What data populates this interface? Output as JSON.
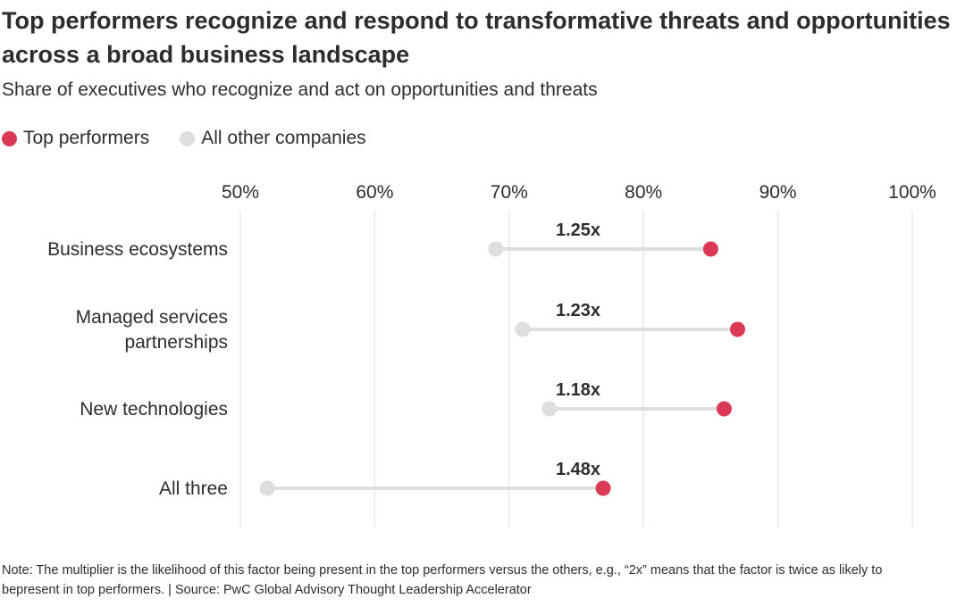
{
  "title": "Top performers recognize and respond to transformative threats and opportunities across a broad business landscape",
  "subtitle": "Share of executives who recognize and act on opportunities and threats",
  "legend": [
    {
      "label": "Top performers",
      "color": "#d93954"
    },
    {
      "label": "All other companies",
      "color": "#dedede"
    }
  ],
  "chart_data": {
    "type": "dumbbell",
    "x_ticks": [
      "50%",
      "60%",
      "70%",
      "80%",
      "90%",
      "100%"
    ],
    "xlim": [
      50,
      100
    ],
    "grid": true,
    "legend_position": "top-left",
    "categories": [
      {
        "label": [
          "Business ecosystems"
        ],
        "others": 69,
        "top": 85,
        "multiplier": "1.25x"
      },
      {
        "label": [
          "Managed services",
          "partnerships"
        ],
        "others": 71,
        "top": 87,
        "multiplier": "1.23x"
      },
      {
        "label": [
          "New technologies"
        ],
        "others": 73,
        "top": 86,
        "multiplier": "1.18x"
      },
      {
        "label": [
          "All three"
        ],
        "others": 52,
        "top": 77,
        "multiplier": "1.48x"
      }
    ],
    "series": [
      {
        "name": "Top performers",
        "color": "#d93954"
      },
      {
        "name": "All other companies",
        "color": "#dedede"
      }
    ]
  },
  "note": "Note: The multiplier is the likelihood of this factor being present in the top performers versus the others, e.g., “2x” means that the factor is twice as likely to bepresent in top performers. | Source: PwC Global Advisory Thought Leadership Accelerator"
}
